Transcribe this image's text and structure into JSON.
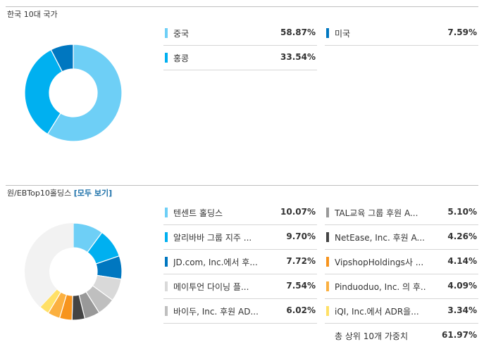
{
  "chart_data": [
    {
      "type": "pie",
      "title": "한국 10대 국가",
      "slices": [
        {
          "label": "중국",
          "value": 58.87,
          "display": "58.87%",
          "color": "#6ecff6"
        },
        {
          "label": "홍콩",
          "value": 33.54,
          "display": "33.54%",
          "color": "#00b0f0"
        },
        {
          "label": "미국",
          "value": 7.59,
          "display": "7.59%",
          "color": "#0077c0"
        }
      ]
    },
    {
      "type": "pie",
      "title": "원/EBTop10홀딩스",
      "title_link": "[모두 보기]",
      "slices": [
        {
          "label": "텐센트 홀딩스",
          "value": 10.07,
          "display": "10.07%",
          "color": "#6ecff6"
        },
        {
          "label": "알리바바 그룹 지주 ...",
          "value": 9.7,
          "display": "9.70%",
          "color": "#00b0f0"
        },
        {
          "label": "JD.com, Inc.에서 후...",
          "value": 7.72,
          "display": "7.72%",
          "color": "#0077c0"
        },
        {
          "label": "메이투언 다이닝 플...",
          "value": 7.54,
          "display": "7.54%",
          "color": "#d9d9d9"
        },
        {
          "label": "바이두, Inc. 후원 AD...",
          "value": 6.02,
          "display": "6.02%",
          "color": "#bfbfbf"
        },
        {
          "label": "TAL교육 그룹 후원 A...",
          "value": 5.1,
          "display": "5.10%",
          "color": "#999999"
        },
        {
          "label": "NetEase, Inc. 후원 A...",
          "value": 4.26,
          "display": "4.26%",
          "color": "#444444"
        },
        {
          "label": "VipshopHoldings사 ...",
          "value": 4.14,
          "display": "4.14%",
          "color": "#f7941d"
        },
        {
          "label": "Pinduoduo, Inc. 의 후...",
          "value": 4.09,
          "display": "4.09%",
          "color": "#fbb040"
        },
        {
          "label": "iQI, Inc.에서 ADR을...",
          "value": 3.34,
          "display": "3.34%",
          "color": "#ffe066"
        }
      ],
      "remainder_color": "#f2f2f2",
      "total": {
        "label": "총 상위 10개 가중치",
        "value": 61.97,
        "display": "61.97%"
      }
    }
  ]
}
